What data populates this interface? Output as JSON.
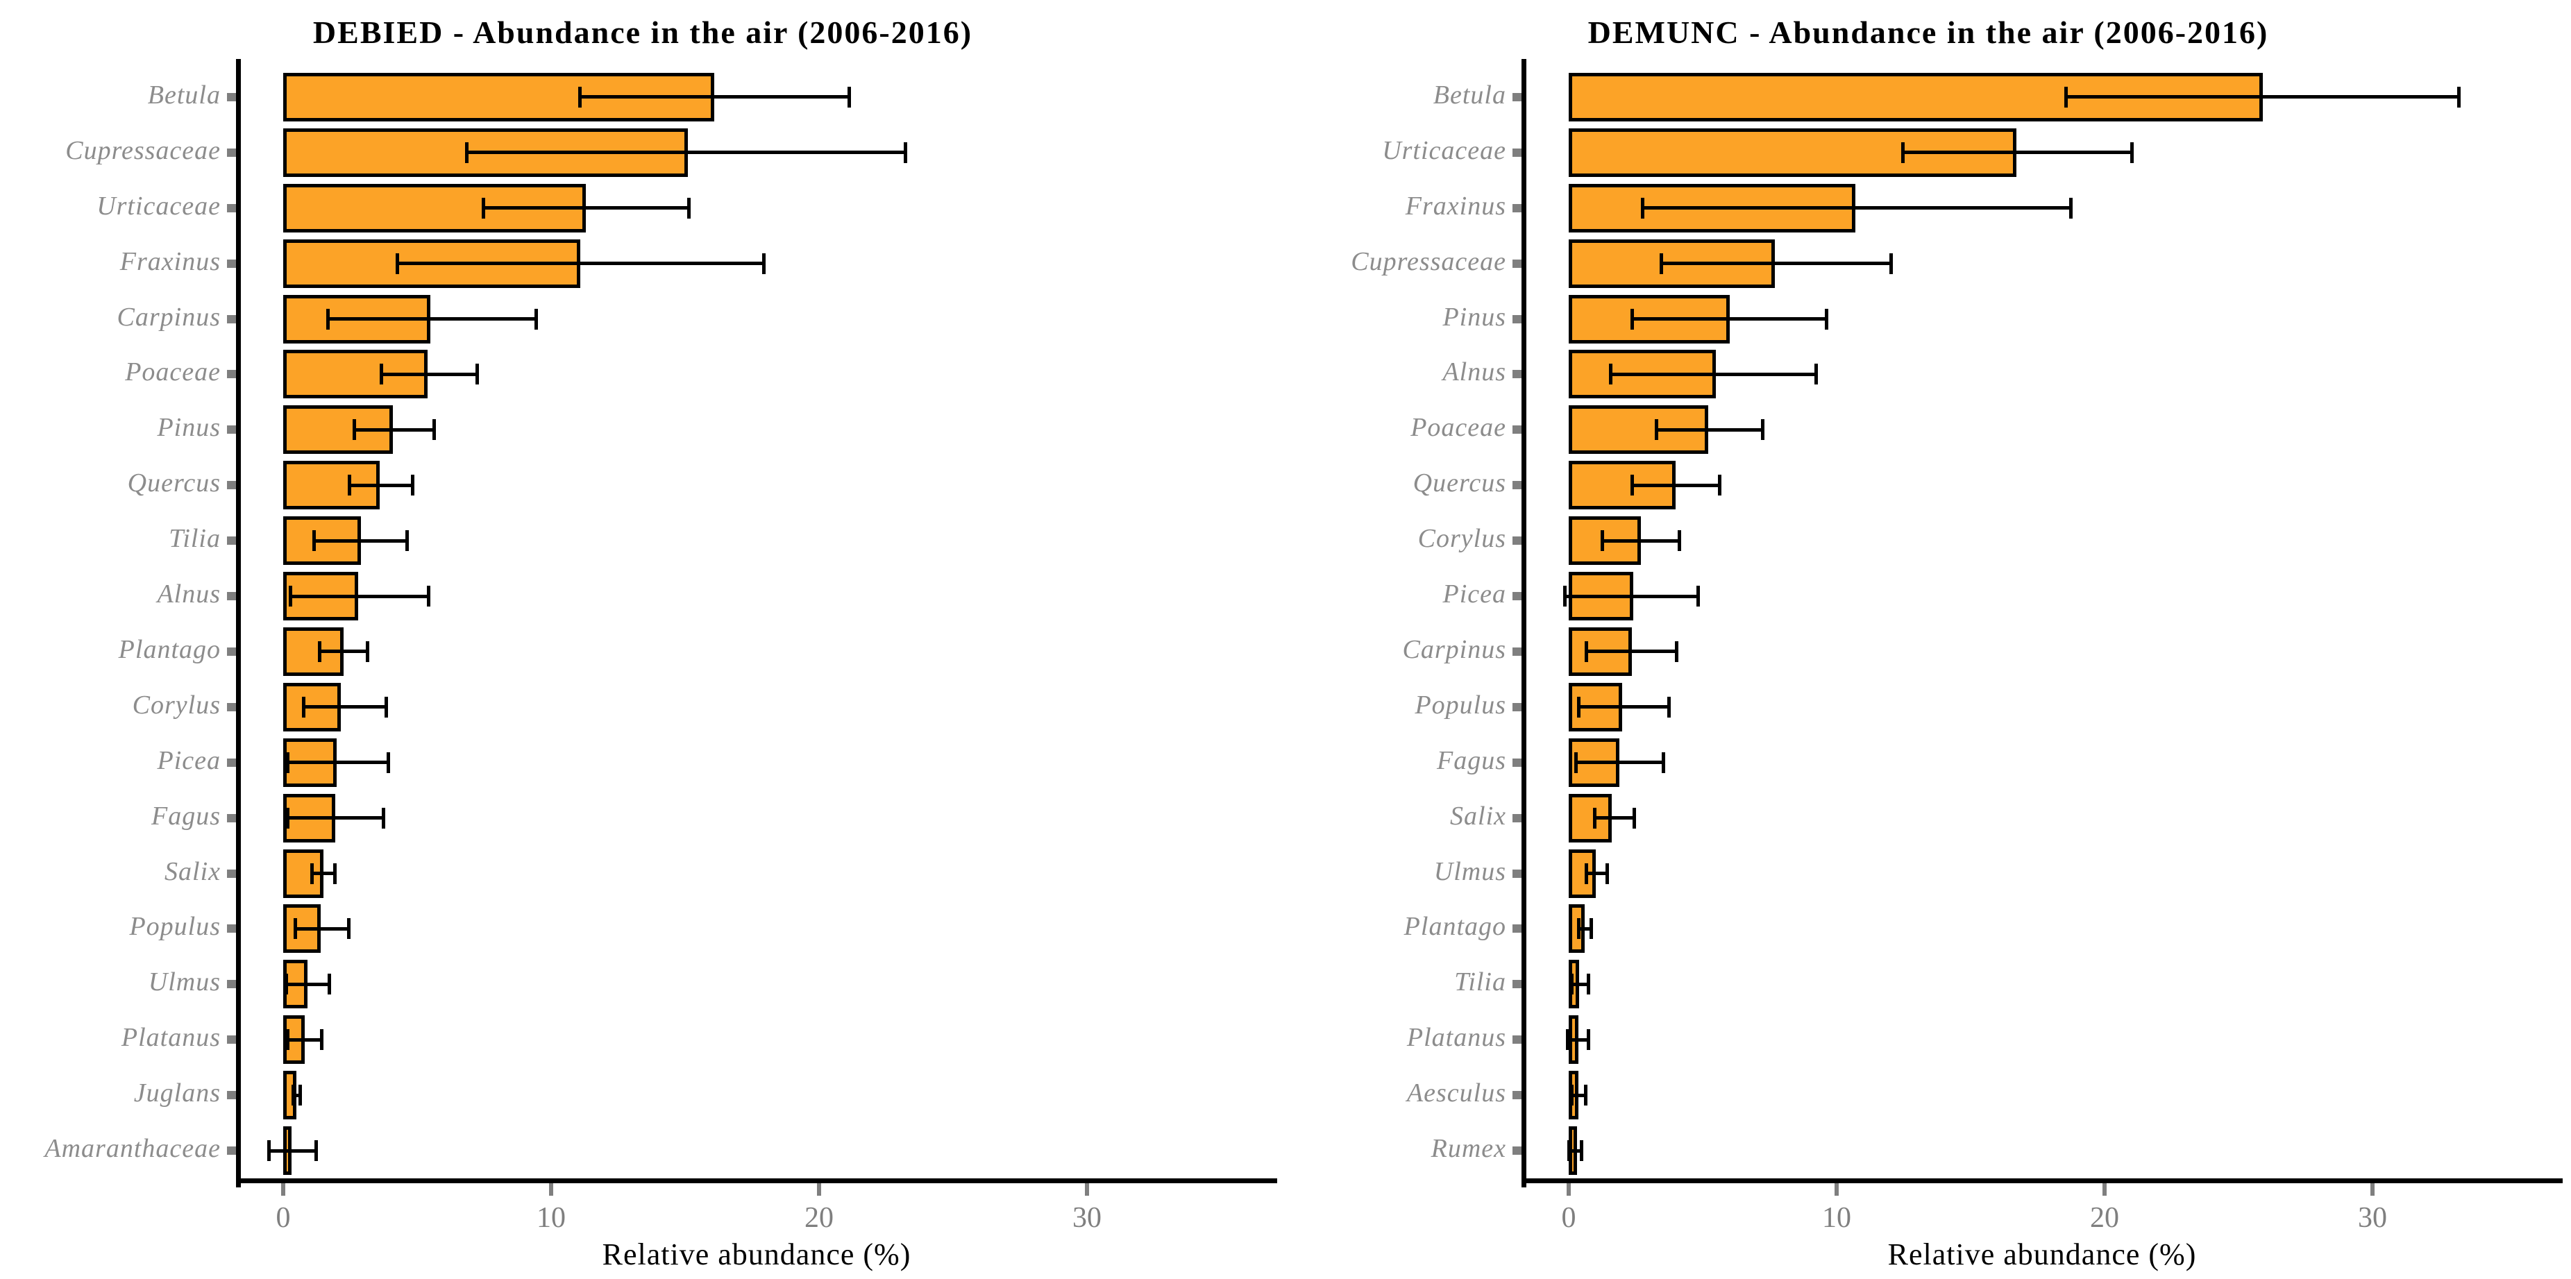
{
  "figure": {
    "background": "#ffffff",
    "bar_fill": "#fca327",
    "bar_stroke": "#000000",
    "error_color": "#000000",
    "axis_color": "#000000",
    "tick_color": "#7f7f7f",
    "label_color": "#8c8c8c"
  },
  "chart_data": [
    {
      "type": "bar",
      "orientation": "horizontal",
      "title": "DEBIED - Abundance in the air (2006-2016)",
      "xlabel": "Relative abundance (%)",
      "x_ticks": [
        0,
        10,
        20,
        30
      ],
      "xlim": [
        -1.8,
        37
      ],
      "grid": "off",
      "legend": "none",
      "categories": [
        "Betula",
        "Cupressaceae",
        "Urticaceae",
        "Fraxinus",
        "Carpinus",
        "Poaceae",
        "Pinus",
        "Quercus",
        "Tilia",
        "Alnus",
        "Plantago",
        "Corylus",
        "Picea",
        "Fagus",
        "Salix",
        "Populus",
        "Ulmus",
        "Platanus",
        "Juglans",
        "Amaranthaceae"
      ],
      "values": [
        16.1,
        15.1,
        11.3,
        11.1,
        5.5,
        5.4,
        4.1,
        3.6,
        2.9,
        2.8,
        2.25,
        2.15,
        2.0,
        1.95,
        1.5,
        1.4,
        0.9,
        0.8,
        0.5,
        0.3
      ],
      "error_low": [
        11.0,
        6.8,
        7.4,
        4.2,
        1.6,
        3.6,
        2.6,
        2.4,
        1.1,
        0.2,
        1.3,
        0.7,
        0.1,
        0.1,
        1.0,
        0.4,
        0.05,
        0.1,
        0.3,
        -0.6
      ],
      "error_high": [
        21.2,
        23.3,
        15.2,
        18.0,
        9.5,
        7.3,
        5.7,
        4.9,
        4.7,
        5.5,
        3.2,
        3.9,
        4.0,
        3.8,
        2.0,
        2.5,
        1.8,
        1.5,
        0.7,
        1.3
      ]
    },
    {
      "type": "bar",
      "orientation": "horizontal",
      "title": "DEMUNC - Abundance in the air (2006-2016)",
      "xlabel": "Relative abundance (%)",
      "x_ticks": [
        0,
        10,
        20,
        30
      ],
      "xlim": [
        -1.8,
        37
      ],
      "grid": "off",
      "legend": "none",
      "categories": [
        "Betula",
        "Urticaceae",
        "Fraxinus",
        "Cupressaceae",
        "Pinus",
        "Alnus",
        "Poaceae",
        "Quercus",
        "Corylus",
        "Picea",
        "Carpinus",
        "Populus",
        "Fagus",
        "Salix",
        "Ulmus",
        "Plantago",
        "Tilia",
        "Platanus",
        "Aesculus",
        "Rumex"
      ],
      "values": [
        25.9,
        16.7,
        10.7,
        7.7,
        6.0,
        5.5,
        5.2,
        4.0,
        2.7,
        2.4,
        2.35,
        2.0,
        1.9,
        1.6,
        1.0,
        0.6,
        0.4,
        0.35,
        0.35,
        0.3
      ],
      "error_low": [
        18.5,
        12.4,
        2.7,
        3.4,
        2.3,
        1.5,
        3.2,
        2.3,
        1.2,
        -0.2,
        0.6,
        0.3,
        0.2,
        0.9,
        0.6,
        0.3,
        0.05,
        -0.1,
        0.05,
        -0.05
      ],
      "error_high": [
        33.3,
        21.1,
        18.8,
        12.1,
        9.7,
        9.3,
        7.3,
        5.7,
        4.2,
        4.9,
        4.1,
        3.8,
        3.6,
        2.5,
        1.5,
        0.9,
        0.8,
        0.8,
        0.7,
        0.55
      ]
    }
  ]
}
